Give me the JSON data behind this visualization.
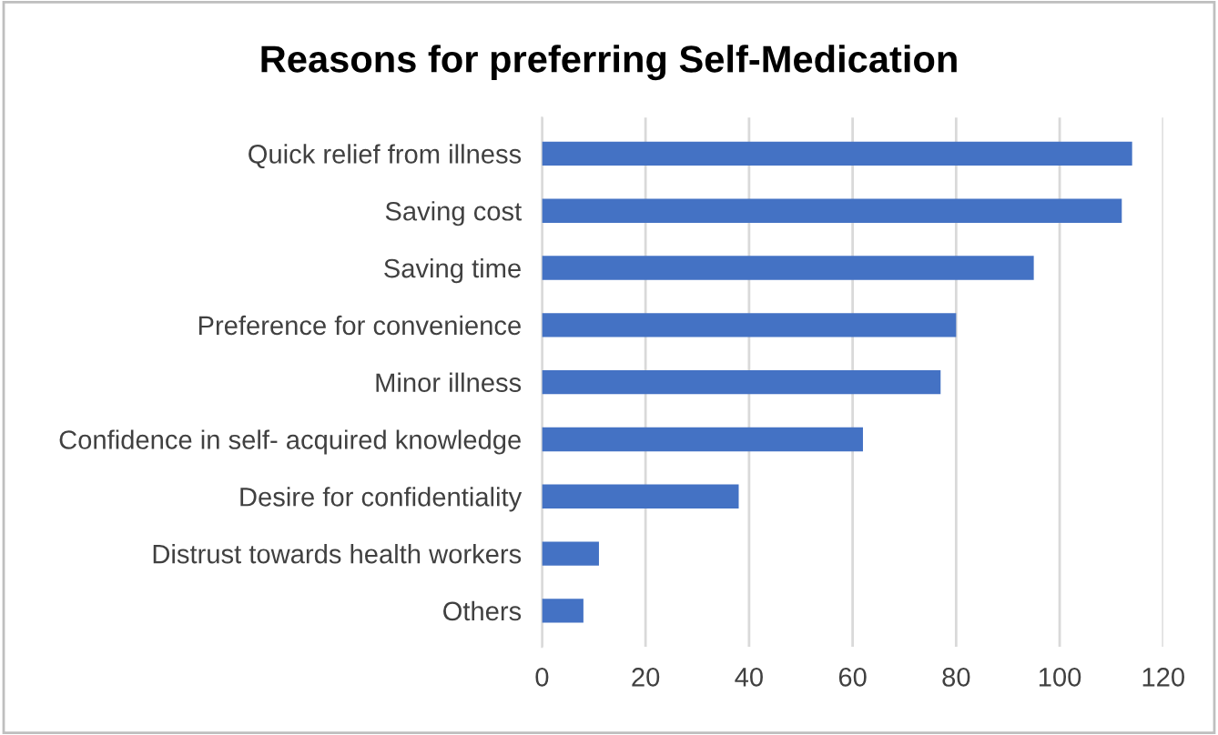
{
  "chart_data": {
    "type": "bar",
    "orientation": "horizontal",
    "title": "Reasons for preferring Self-Medication",
    "categories": [
      "Quick relief from illness",
      "Saving cost",
      "Saving time",
      "Preference for convenience",
      "Minor illness",
      "Confidence in self- acquired knowledge",
      "Desire for confidentiality",
      "Distrust towards health workers",
      "Others"
    ],
    "values": [
      114,
      112,
      95,
      80,
      77,
      62,
      38,
      11,
      8
    ],
    "color": "#4472c4",
    "xlim": [
      0,
      120
    ],
    "xticks": [
      0,
      20,
      40,
      60,
      80,
      100,
      120
    ],
    "grid": "x"
  }
}
